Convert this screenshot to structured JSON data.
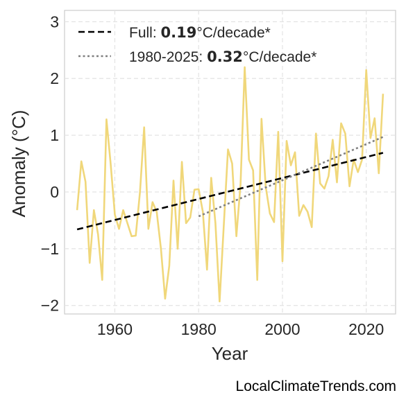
{
  "chart_data": {
    "type": "line",
    "xlabel": "Year",
    "ylabel": "Anomaly (°C)",
    "xlim": [
      1948,
      2027
    ],
    "ylim": [
      -2.15,
      3.2
    ],
    "x_ticks": [
      1960,
      1980,
      2000,
      2020
    ],
    "y_ticks": [
      -2,
      -1,
      0,
      1,
      2,
      3
    ],
    "y_tick_labels": [
      "−2",
      "−1",
      "0",
      "1",
      "2",
      "3"
    ],
    "grid": true,
    "legend_position": "top-left",
    "series": [
      {
        "color": "#f0d77a",
        "x": [
          1951,
          1952,
          1953,
          1954,
          1955,
          1956,
          1957,
          1958,
          1959,
          1960,
          1961,
          1962,
          1963,
          1964,
          1965,
          1966,
          1967,
          1968,
          1969,
          1970,
          1971,
          1972,
          1973,
          1974,
          1975,
          1976,
          1977,
          1978,
          1979,
          1980,
          1981,
          1982,
          1983,
          1984,
          1985,
          1986,
          1987,
          1988,
          1989,
          1990,
          1991,
          1992,
          1993,
          1994,
          1995,
          1996,
          1997,
          1998,
          1999,
          2000,
          2001,
          2002,
          2003,
          2004,
          2005,
          2006,
          2007,
          2008,
          2009,
          2010,
          2011,
          2012,
          2013,
          2014,
          2015,
          2016,
          2017,
          2018,
          2019,
          2020,
          2021,
          2022,
          2023,
          2024
        ],
        "y": [
          -0.32,
          0.54,
          0.18,
          -1.25,
          -0.32,
          -0.75,
          -1.55,
          1.28,
          0.5,
          -0.4,
          -0.65,
          -0.32,
          -0.55,
          -0.78,
          -0.77,
          0.0,
          1.14,
          -0.65,
          -0.18,
          -0.35,
          -1.0,
          -1.88,
          -1.3,
          0.2,
          -1.0,
          0.53,
          -0.55,
          -0.45,
          0.04,
          0.05,
          -0.35,
          -1.37,
          0.25,
          -0.55,
          -1.93,
          -0.6,
          0.75,
          0.5,
          -0.78,
          0.14,
          2.2,
          0.57,
          0.38,
          -1.55,
          1.29,
          0.1,
          -0.38,
          -0.53,
          1.06,
          -1.22,
          0.9,
          0.47,
          0.7,
          -0.42,
          -0.23,
          -0.35,
          -0.62,
          1.03,
          0.15,
          0.06,
          0.28,
          0.92,
          0.17,
          1.21,
          1.03,
          0.1,
          0.57,
          0.35,
          0.57,
          2.15,
          0.95,
          1.3,
          0.33,
          1.73
        ]
      }
    ],
    "trend_lines": [
      {
        "name": "Full",
        "style": "dashed",
        "color": "#000000",
        "x": [
          1951,
          2024
        ],
        "y": [
          -0.66,
          0.69
        ]
      },
      {
        "name": "1980-2025",
        "style": "dotted",
        "color": "#808080",
        "x": [
          1980,
          2024
        ],
        "y": [
          -0.43,
          0.97
        ]
      }
    ],
    "legend": [
      {
        "prefix": "Full: ",
        "value": "0.19",
        "suffix": "°C/decade*",
        "style": "dashed",
        "color": "#000000"
      },
      {
        "prefix": "1980-2025: ",
        "value": "0.32",
        "suffix": "°C/decade*",
        "style": "dotted",
        "color": "#808080"
      }
    ]
  },
  "credit": "LocalClimateTrends.com"
}
